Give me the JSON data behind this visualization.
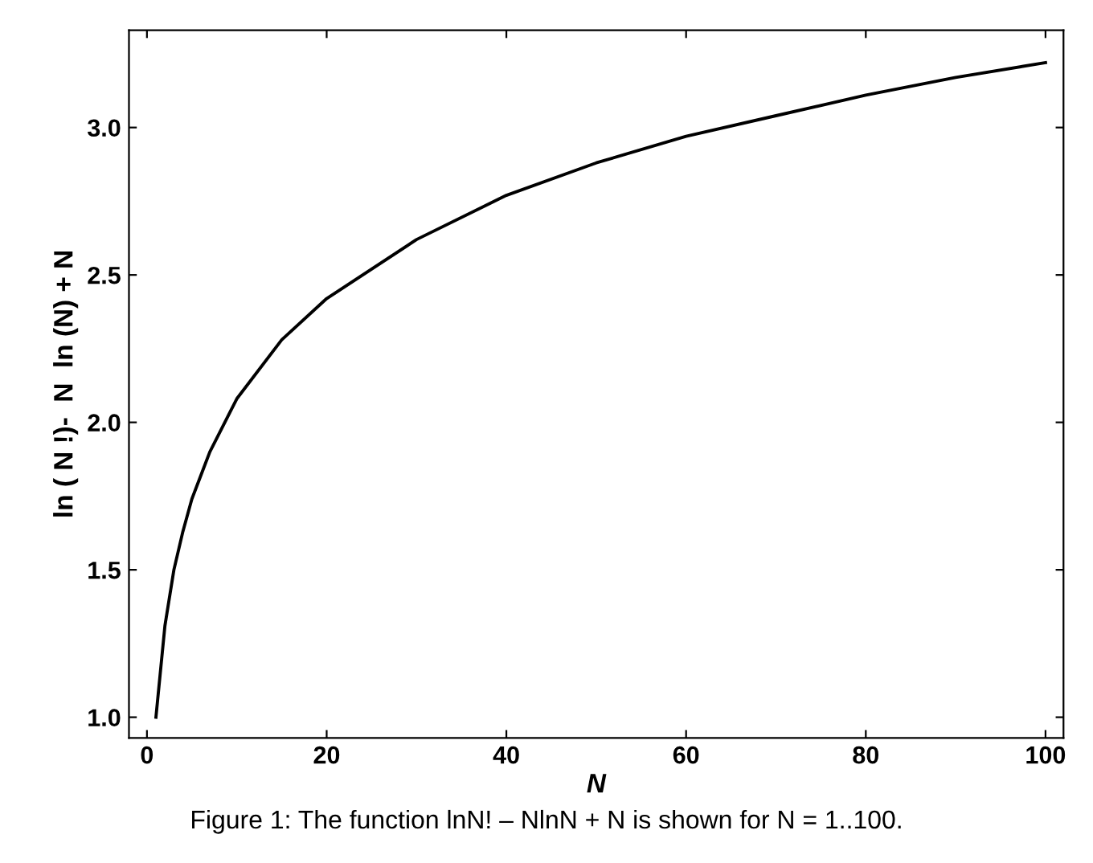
{
  "chart_data": {
    "type": "line",
    "xlabel": "N",
    "ylabel": "ln ( N !)-  N  ln (N) + N",
    "annotations": [
      "Figure 1: The function lnN! – NlnN + N is shown for N = 1..100."
    ],
    "series": [
      {
        "color": "#000000",
        "x": [
          1,
          2,
          3,
          4,
          5,
          7,
          10,
          15,
          20,
          30,
          40,
          50,
          60,
          70,
          80,
          90,
          100
        ],
        "values": [
          1.0,
          1.31,
          1.5,
          1.63,
          1.74,
          1.9,
          2.08,
          2.28,
          2.42,
          2.62,
          2.77,
          2.88,
          2.97,
          3.04,
          3.11,
          3.17,
          3.22
        ]
      }
    ],
    "xlim": [
      -2,
      102
    ],
    "ylim": [
      0.93,
      3.33
    ],
    "xticks": [
      0,
      20,
      40,
      60,
      80,
      100
    ],
    "yticks": [
      {
        "value": 1,
        "label": "1.0"
      },
      1.5,
      {
        "value": 2,
        "label": "2.0"
      },
      2.5,
      {
        "value": 3,
        "label": "3.0"
      }
    ],
    "grid": false,
    "legend": false,
    "marker": "none",
    "line_style": "solid"
  }
}
